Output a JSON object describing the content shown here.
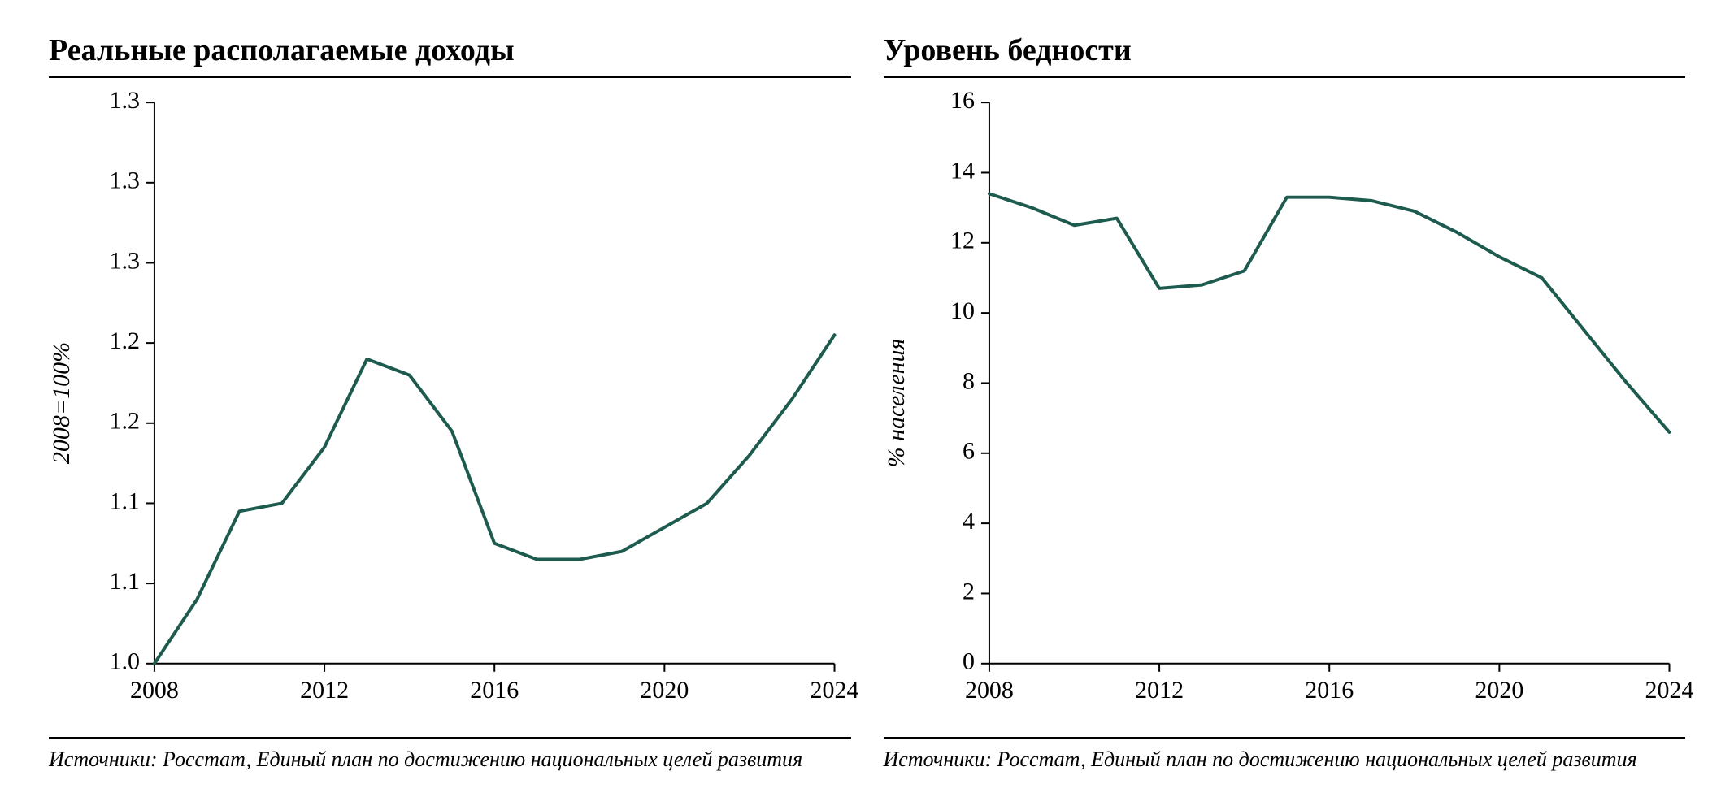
{
  "layout": {
    "panels": 2,
    "background_color": "#ffffff",
    "title_fontsize": 38,
    "title_fontweight": "bold",
    "tick_fontsize": 30,
    "axis_color": "#000000",
    "line_width": 4,
    "font_family": "Times New Roman"
  },
  "left": {
    "title": "Реальные располагаемые доходы",
    "y_axis_label": "2008=100%",
    "footer": "Источники: Росстат,  Единый план по достижению национальных целей развития",
    "type": "line",
    "line_color": "#1e5b4f",
    "x": {
      "min": 2008,
      "max": 2024,
      "ticks": [
        2008,
        2012,
        2016,
        2020,
        2024
      ],
      "tick_labels": [
        "2008",
        "2012",
        "2016",
        "2020",
        "2024"
      ]
    },
    "y": {
      "min": 1.0,
      "max": 1.35,
      "ticks": [
        1.0,
        1.05,
        1.1,
        1.15,
        1.2,
        1.25,
        1.3,
        1.35
      ],
      "tick_labels": [
        "1.0",
        "1.1",
        "1.1",
        "1.2",
        "1.2",
        "1.3",
        "1.3",
        "1.3"
      ]
    },
    "series": {
      "x": [
        2008,
        2009,
        2010,
        2011,
        2012,
        2013,
        2014,
        2015,
        2016,
        2017,
        2018,
        2019,
        2020,
        2021,
        2022,
        2023,
        2024
      ],
      "y": [
        1.0,
        1.04,
        1.095,
        1.1,
        1.135,
        1.19,
        1.18,
        1.145,
        1.075,
        1.065,
        1.065,
        1.07,
        1.085,
        1.1,
        1.13,
        1.165,
        1.205
      ]
    }
  },
  "right": {
    "title": "Уровень бедности",
    "y_axis_label": "% населения",
    "footer": "Источники: Росстат,  Единый план по достижению национальных целей развития",
    "type": "line",
    "line_color": "#1e5b4f",
    "x": {
      "min": 2008,
      "max": 2024,
      "ticks": [
        2008,
        2012,
        2016,
        2020,
        2024
      ],
      "tick_labels": [
        "2008",
        "2012",
        "2016",
        "2020",
        "2024"
      ]
    },
    "y": {
      "min": 0,
      "max": 16,
      "ticks": [
        0,
        2,
        4,
        6,
        8,
        10,
        12,
        14,
        16
      ],
      "tick_labels": [
        "0",
        "2",
        "4",
        "6",
        "8",
        "10",
        "12",
        "14",
        "16"
      ]
    },
    "series": {
      "x": [
        2008,
        2009,
        2010,
        2011,
        2012,
        2013,
        2014,
        2015,
        2016,
        2017,
        2018,
        2019,
        2020,
        2021,
        2022,
        2023,
        2024
      ],
      "y": [
        13.4,
        13.0,
        12.5,
        12.7,
        10.7,
        10.8,
        11.2,
        13.3,
        13.3,
        13.2,
        12.9,
        12.3,
        11.6,
        11.0,
        9.5,
        8.0,
        6.6
      ]
    }
  }
}
